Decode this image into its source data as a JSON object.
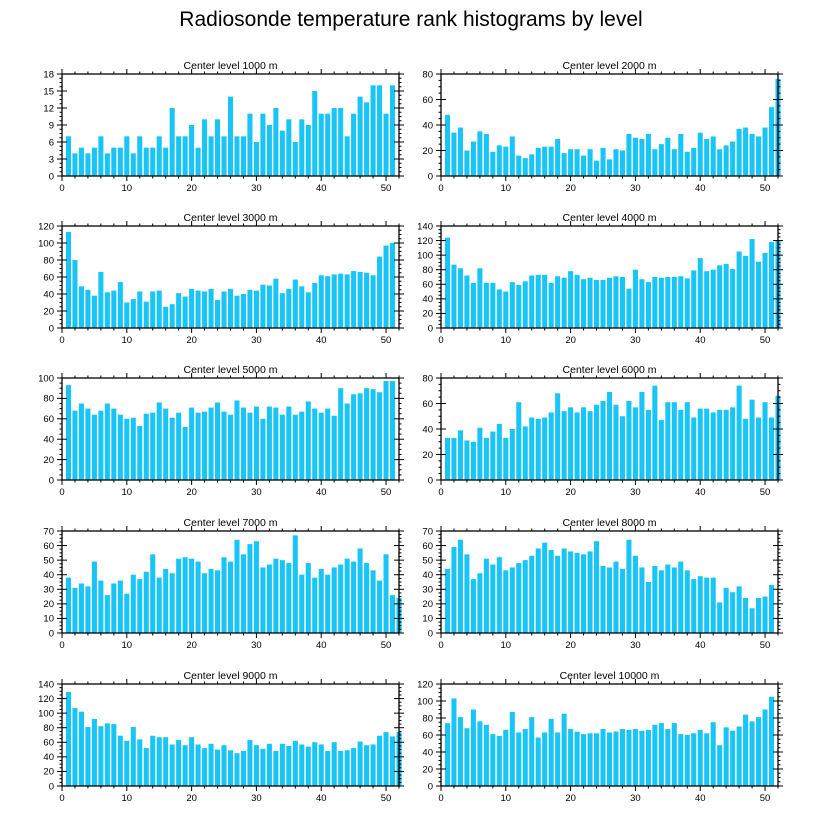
{
  "title": "Radiosonde temperature rank histograms by level",
  "colors": {
    "bar": "#19c4f7",
    "frame": "#000000"
  },
  "chart_data": [
    {
      "type": "bar",
      "title": "Center level 1000 m",
      "xlim": [
        0,
        52
      ],
      "xticks": [
        0,
        10,
        20,
        30,
        40,
        50
      ],
      "ylim": [
        0,
        18
      ],
      "yticks": [
        0,
        3,
        6,
        9,
        12,
        15,
        18
      ],
      "values": [
        7,
        4,
        5,
        4,
        5,
        7,
        4,
        5,
        5,
        7,
        4,
        7,
        5,
        5,
        7,
        5,
        12,
        7,
        7,
        9,
        5,
        10,
        7,
        10,
        7,
        14,
        7,
        7,
        11,
        6,
        11,
        9,
        12,
        8,
        10,
        6,
        10,
        9,
        15,
        11,
        11,
        12,
        12,
        7,
        11,
        14,
        13,
        16,
        16,
        11,
        16
      ]
    },
    {
      "type": "bar",
      "title": "Center level 2000 m",
      "xlim": [
        0,
        52
      ],
      "xticks": [
        0,
        10,
        20,
        30,
        40,
        50
      ],
      "ylim": [
        0,
        80
      ],
      "yticks": [
        0,
        20,
        40,
        60,
        80
      ],
      "values": [
        48,
        34,
        38,
        20,
        27,
        35,
        33,
        19,
        24,
        23,
        31,
        16,
        14,
        17,
        22,
        23,
        23,
        29,
        18,
        21,
        21,
        16,
        21,
        12,
        22,
        13,
        21,
        20,
        33,
        30,
        29,
        33,
        21,
        25,
        30,
        21,
        33,
        19,
        22,
        34,
        29,
        31,
        21,
        24,
        27,
        37,
        38,
        33,
        31,
        38,
        54,
        76
      ]
    },
    {
      "type": "bar",
      "title": "Center level 3000 m",
      "xlim": [
        0,
        52
      ],
      "xticks": [
        0,
        10,
        20,
        30,
        40,
        50
      ],
      "ylim": [
        0,
        120
      ],
      "yticks": [
        0,
        20,
        40,
        60,
        80,
        100,
        120
      ],
      "values": [
        113,
        80,
        49,
        45,
        38,
        66,
        42,
        44,
        54,
        30,
        34,
        43,
        31,
        43,
        44,
        25,
        28,
        41,
        37,
        46,
        44,
        43,
        46,
        33,
        43,
        46,
        38,
        40,
        45,
        44,
        51,
        50,
        58,
        41,
        46,
        57,
        49,
        42,
        53,
        62,
        61,
        63,
        64,
        63,
        67,
        66,
        65,
        62,
        84,
        97,
        100
      ]
    },
    {
      "type": "bar",
      "title": "Center level 4000 m",
      "xlim": [
        0,
        52
      ],
      "xticks": [
        0,
        10,
        20,
        30,
        40,
        50
      ],
      "ylim": [
        0,
        140
      ],
      "yticks": [
        0,
        20,
        40,
        60,
        80,
        100,
        120,
        140
      ],
      "values": [
        124,
        87,
        82,
        72,
        62,
        82,
        62,
        62,
        53,
        50,
        63,
        59,
        64,
        72,
        73,
        73,
        62,
        71,
        69,
        78,
        73,
        67,
        69,
        66,
        66,
        69,
        71,
        70,
        54,
        80,
        67,
        63,
        70,
        69,
        70,
        70,
        71,
        68,
        79,
        96,
        78,
        80,
        86,
        88,
        81,
        105,
        99,
        122,
        91,
        103,
        118,
        120
      ]
    },
    {
      "type": "bar",
      "title": "Center level 5000 m",
      "xlim": [
        0,
        52
      ],
      "xticks": [
        0,
        10,
        20,
        30,
        40,
        50
      ],
      "ylim": [
        0,
        100
      ],
      "yticks": [
        0,
        20,
        40,
        60,
        80,
        100
      ],
      "values": [
        93,
        68,
        75,
        70,
        64,
        68,
        75,
        70,
        64,
        60,
        61,
        53,
        65,
        66,
        76,
        70,
        61,
        66,
        52,
        71,
        66,
        67,
        71,
        76,
        67,
        64,
        78,
        71,
        66,
        72,
        60,
        72,
        71,
        64,
        72,
        64,
        67,
        77,
        70,
        66,
        70,
        63,
        90,
        75,
        84,
        85,
        90,
        89,
        86,
        97,
        97
      ]
    },
    {
      "type": "bar",
      "title": "Center level 6000 m",
      "xlim": [
        0,
        52
      ],
      "xticks": [
        0,
        10,
        20,
        30,
        40,
        50
      ],
      "ylim": [
        0,
        80
      ],
      "yticks": [
        0,
        20,
        40,
        60,
        80
      ],
      "values": [
        33,
        33,
        39,
        31,
        30,
        41,
        33,
        38,
        44,
        33,
        40,
        61,
        42,
        49,
        48,
        49,
        53,
        68,
        54,
        57,
        53,
        57,
        54,
        59,
        62,
        69,
        59,
        50,
        62,
        57,
        69,
        55,
        74,
        47,
        61,
        61,
        55,
        61,
        49,
        56,
        56,
        53,
        55,
        55,
        57,
        74,
        48,
        63,
        49,
        61,
        49,
        66
      ]
    },
    {
      "type": "bar",
      "title": "Center level 7000 m",
      "xlim": [
        0,
        52
      ],
      "xticks": [
        0,
        10,
        20,
        30,
        40,
        50
      ],
      "ylim": [
        0,
        70
      ],
      "yticks": [
        0,
        10,
        20,
        30,
        40,
        50,
        60,
        70
      ],
      "values": [
        38,
        31,
        34,
        32,
        49,
        36,
        26,
        34,
        36,
        27,
        40,
        37,
        42,
        54,
        38,
        44,
        41,
        51,
        52,
        51,
        49,
        41,
        44,
        43,
        52,
        49,
        64,
        54,
        61,
        63,
        45,
        47,
        51,
        50,
        48,
        67,
        40,
        48,
        38,
        44,
        40,
        45,
        47,
        51,
        49,
        58,
        48,
        43,
        36,
        54,
        26,
        24
      ]
    },
    {
      "type": "bar",
      "title": "Center level 8000 m",
      "xlim": [
        0,
        52
      ],
      "xticks": [
        0,
        10,
        20,
        30,
        40,
        50
      ],
      "ylim": [
        0,
        70
      ],
      "yticks": [
        0,
        10,
        20,
        30,
        40,
        50,
        60,
        70
      ],
      "values": [
        44,
        59,
        64,
        54,
        37,
        41,
        51,
        47,
        52,
        43,
        45,
        48,
        50,
        53,
        58,
        62,
        57,
        53,
        58,
        56,
        55,
        54,
        56,
        63,
        46,
        45,
        49,
        44,
        64,
        53,
        45,
        35,
        46,
        43,
        47,
        45,
        49,
        43,
        37,
        39,
        38,
        38,
        21,
        31,
        28,
        32,
        24,
        17,
        24,
        25,
        33
      ]
    },
    {
      "type": "bar",
      "title": "Center level 9000 m",
      "xlim": [
        0,
        52
      ],
      "xticks": [
        0,
        10,
        20,
        30,
        40,
        50
      ],
      "ylim": [
        0,
        140
      ],
      "yticks": [
        0,
        20,
        40,
        60,
        80,
        100,
        120,
        140
      ],
      "values": [
        129,
        107,
        102,
        81,
        92,
        82,
        86,
        85,
        69,
        62,
        81,
        64,
        52,
        69,
        67,
        67,
        57,
        63,
        56,
        67,
        57,
        52,
        58,
        50,
        56,
        49,
        45,
        48,
        63,
        56,
        51,
        58,
        48,
        58,
        55,
        62,
        57,
        54,
        60,
        57,
        48,
        60,
        48,
        49,
        52,
        61,
        56,
        57,
        69,
        74,
        68,
        74
      ]
    },
    {
      "type": "bar",
      "title": "Center level 10000 m",
      "xlim": [
        0,
        52
      ],
      "xticks": [
        0,
        10,
        20,
        30,
        40,
        50
      ],
      "ylim": [
        0,
        120
      ],
      "yticks": [
        0,
        20,
        40,
        60,
        80,
        100,
        120
      ],
      "values": [
        74,
        103,
        81,
        68,
        90,
        76,
        72,
        61,
        59,
        66,
        87,
        63,
        67,
        81,
        57,
        63,
        79,
        63,
        85,
        67,
        64,
        61,
        62,
        62,
        67,
        63,
        64,
        67,
        66,
        67,
        65,
        66,
        72,
        74,
        67,
        74,
        61,
        60,
        62,
        66,
        62,
        75,
        48,
        69,
        65,
        70,
        84,
        76,
        81,
        90,
        105
      ]
    }
  ]
}
